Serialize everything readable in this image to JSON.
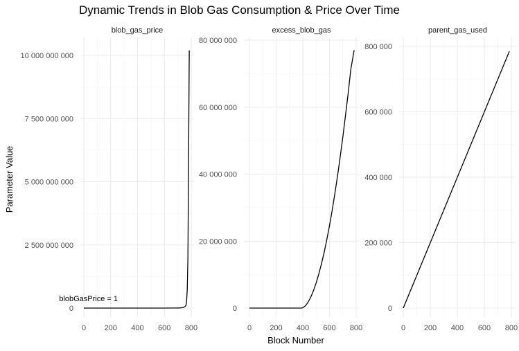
{
  "chart_data": {
    "type": "line",
    "title": "Dynamic Trends in Blob Gas Consumption & Price Over Time",
    "xlabel": "Block Number",
    "ylabel": "Parameter Value",
    "grid": true,
    "line_color": "#000000",
    "panels": [
      {
        "name": "blob_gas_price",
        "xlim": [
          0,
          800
        ],
        "x_ticks": [
          0,
          200,
          400,
          600,
          800
        ],
        "x_tick_labels": [
          "0",
          "200",
          "400",
          "600",
          "800"
        ],
        "ylim": [
          0,
          10000000000
        ],
        "y_ticks": [
          0,
          2500000000,
          5000000000,
          7500000000,
          10000000000
        ],
        "y_tick_labels": [
          "0",
          "2 500 000 000",
          "5 000 000 000",
          "7 500 000 000",
          "10 000 000 000"
        ],
        "annotation": {
          "text": "blobGasPrice = 1",
          "x": 270,
          "y": 250000000
        },
        "x": [
          0,
          100,
          200,
          300,
          400,
          500,
          600,
          700,
          720,
          730,
          740,
          745,
          750,
          755,
          760,
          765,
          770,
          775,
          780,
          785
        ],
        "y": [
          1,
          1,
          1,
          1,
          1,
          1,
          10,
          2000000,
          7000000,
          13000000,
          25000000,
          35000000,
          48000000,
          70000000,
          100000000,
          250000000,
          700000000,
          2000000000,
          5500000000,
          10200000000
        ]
      },
      {
        "name": "excess_blob_gas",
        "xlim": [
          0,
          800
        ],
        "x_ticks": [
          0,
          200,
          400,
          600,
          800
        ],
        "x_tick_labels": [
          "0",
          "200",
          "400",
          "600",
          "800"
        ],
        "ylim": [
          0,
          80000000
        ],
        "y_ticks": [
          0,
          20000000,
          40000000,
          60000000,
          80000000
        ],
        "y_tick_labels": [
          "0",
          "20 000 000",
          "40 000 000",
          "60 000 000",
          "80 000 000"
        ],
        "x": [
          0,
          100,
          200,
          300,
          390,
          400,
          420,
          440,
          460,
          480,
          500,
          520,
          540,
          560,
          580,
          600,
          620,
          640,
          660,
          680,
          700,
          720,
          740,
          760,
          785
        ],
        "y": [
          0,
          0,
          0,
          0,
          0,
          100000,
          700000,
          1800000,
          3300000,
          5200000,
          7500000,
          10200000,
          13200000,
          16600000,
          20400000,
          24600000,
          29200000,
          34100000,
          39400000,
          45100000,
          51100000,
          57500000,
          64200000,
          71300000,
          77000000
        ]
      },
      {
        "name": "parent_gas_used",
        "xlim": [
          0,
          800
        ],
        "x_ticks": [
          0,
          200,
          400,
          600,
          800
        ],
        "x_tick_labels": [
          "0",
          "200",
          "400",
          "600",
          "800"
        ],
        "ylim": [
          0,
          800000
        ],
        "y_ticks": [
          0,
          200000,
          400000,
          600000,
          800000
        ],
        "y_tick_labels": [
          "0",
          "200 000",
          "400 000",
          "600 000",
          "800 000"
        ],
        "x": [
          0,
          785
        ],
        "y": [
          0,
          785000
        ]
      }
    ]
  }
}
